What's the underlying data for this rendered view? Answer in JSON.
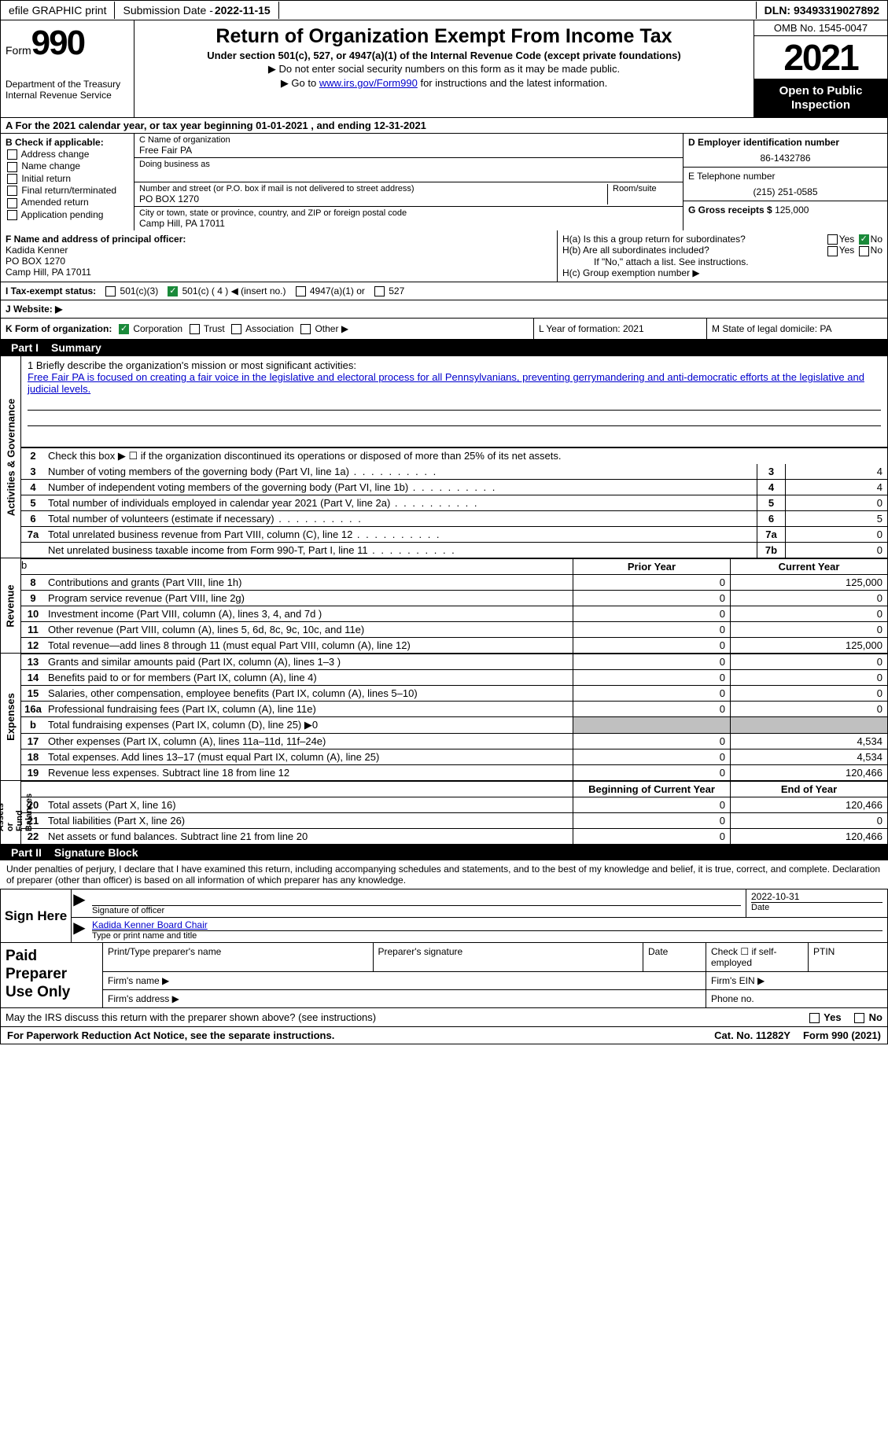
{
  "top": {
    "efile_btn": "efile GRAPHIC print",
    "submission_label": "Submission Date - ",
    "submission_date": "2022-11-15",
    "dln_label": "DLN: ",
    "dln": "93493319027892"
  },
  "header": {
    "form_word": "Form",
    "form_num": "990",
    "dept": "Department of the Treasury\nInternal Revenue Service",
    "title": "Return of Organization Exempt From Income Tax",
    "sub": "Under section 501(c), 527, or 4947(a)(1) of the Internal Revenue Code (except private foundations)",
    "note1": "▶ Do not enter social security numbers on this form as it may be made public.",
    "note2_pre": "▶ Go to ",
    "note2_link": "www.irs.gov/Form990",
    "note2_post": " for instructions and the latest information.",
    "omb": "OMB No. 1545-0047",
    "year": "2021",
    "open": "Open to Public Inspection"
  },
  "period": {
    "text": "A For the 2021 calendar year, or tax year beginning 01-01-2021     , and ending 12-31-2021"
  },
  "section_b": {
    "label": "B Check if applicable:",
    "opts": [
      "Address change",
      "Name change",
      "Initial return",
      "Final return/terminated",
      "Amended return",
      "Application pending"
    ]
  },
  "section_c": {
    "name_label": "C Name of organization",
    "name": "Free Fair PA",
    "dba_label": "Doing business as",
    "addr_label": "Number and street (or P.O. box if mail is not delivered to street address)",
    "room_label": "Room/suite",
    "addr": "PO BOX 1270",
    "city_label": "City or town, state or province, country, and ZIP or foreign postal code",
    "city": "Camp Hill, PA   17011"
  },
  "section_d": {
    "ein_label": "D Employer identification number",
    "ein": "86-1432786",
    "tel_label": "E Telephone number",
    "tel": "(215) 251-0585",
    "gross_label": "G Gross receipts $ ",
    "gross": "125,000"
  },
  "section_f": {
    "label": "F Name and address of principal officer:",
    "name": "Kadida Kenner",
    "addr1": "PO BOX 1270",
    "addr2": "Camp Hill, PA   17011"
  },
  "section_h": {
    "ha": "H(a)  Is this a group return for subordinates?",
    "hb": "H(b)  Are all subordinates included?",
    "hb_note": "If \"No,\" attach a list. See instructions.",
    "hc": "H(c)  Group exemption number ▶",
    "yes": "Yes",
    "no": "No"
  },
  "section_i": {
    "label": "I  Tax-exempt status:",
    "o1": "501(c)(3)",
    "o2": "501(c) ( 4 ) ◀ (insert no.)",
    "o3": "4947(a)(1) or",
    "o4": "527"
  },
  "section_j": {
    "label": "J  Website: ▶"
  },
  "section_k": {
    "label": "K Form of organization:",
    "o1": "Corporation",
    "o2": "Trust",
    "o3": "Association",
    "o4": "Other ▶"
  },
  "section_l": {
    "text": "L Year of formation: 2021"
  },
  "section_m": {
    "text": "M State of legal domicile: PA"
  },
  "part1": {
    "header_num": "Part I",
    "header_title": "Summary",
    "mission_label": "1  Briefly describe the organization's mission or most significant activities:",
    "mission": "Free Fair PA is focused on creating a fair voice in the legislative and electoral process for all Pennsylvanians, preventing gerrymandering and anti-democratic efforts at the legislative and judicial levels.",
    "line2": "Check this box ▶ ☐  if the organization discontinued its operations or disposed of more than 25% of its net assets.",
    "lines_a": [
      {
        "n": "3",
        "d": "Number of voting members of the governing body (Part VI, line 1a)",
        "b": "3",
        "v": "4"
      },
      {
        "n": "4",
        "d": "Number of independent voting members of the governing body (Part VI, line 1b)",
        "b": "4",
        "v": "4"
      },
      {
        "n": "5",
        "d": "Total number of individuals employed in calendar year 2021 (Part V, line 2a)",
        "b": "5",
        "v": "0"
      },
      {
        "n": "6",
        "d": "Total number of volunteers (estimate if necessary)",
        "b": "6",
        "v": "5"
      },
      {
        "n": "7a",
        "d": "Total unrelated business revenue from Part VIII, column (C), line 12",
        "b": "7a",
        "v": "0"
      },
      {
        "n": "",
        "d": "Net unrelated business taxable income from Form 990-T, Part I, line 11",
        "b": "7b",
        "v": "0"
      }
    ],
    "col_prior": "Prior Year",
    "col_current": "Current Year",
    "revenue": [
      {
        "n": "8",
        "d": "Contributions and grants (Part VIII, line 1h)",
        "p": "0",
        "c": "125,000"
      },
      {
        "n": "9",
        "d": "Program service revenue (Part VIII, line 2g)",
        "p": "0",
        "c": "0"
      },
      {
        "n": "10",
        "d": "Investment income (Part VIII, column (A), lines 3, 4, and 7d )",
        "p": "0",
        "c": "0"
      },
      {
        "n": "11",
        "d": "Other revenue (Part VIII, column (A), lines 5, 6d, 8c, 9c, 10c, and 11e)",
        "p": "0",
        "c": "0"
      },
      {
        "n": "12",
        "d": "Total revenue—add lines 8 through 11 (must equal Part VIII, column (A), line 12)",
        "p": "0",
        "c": "125,000"
      }
    ],
    "expenses": [
      {
        "n": "13",
        "d": "Grants and similar amounts paid (Part IX, column (A), lines 1–3 )",
        "p": "0",
        "c": "0"
      },
      {
        "n": "14",
        "d": "Benefits paid to or for members (Part IX, column (A), line 4)",
        "p": "0",
        "c": "0"
      },
      {
        "n": "15",
        "d": "Salaries, other compensation, employee benefits (Part IX, column (A), lines 5–10)",
        "p": "0",
        "c": "0"
      },
      {
        "n": "16a",
        "d": "Professional fundraising fees (Part IX, column (A), line 11e)",
        "p": "0",
        "c": "0"
      },
      {
        "n": "b",
        "d": "Total fundraising expenses (Part IX, column (D), line 25) ▶0",
        "p": "shade",
        "c": "shade"
      },
      {
        "n": "17",
        "d": "Other expenses (Part IX, column (A), lines 11a–11d, 11f–24e)",
        "p": "0",
        "c": "4,534"
      },
      {
        "n": "18",
        "d": "Total expenses. Add lines 13–17 (must equal Part IX, column (A), line 25)",
        "p": "0",
        "c": "4,534"
      },
      {
        "n": "19",
        "d": "Revenue less expenses. Subtract line 18 from line 12",
        "p": "0",
        "c": "120,466"
      }
    ],
    "col_beg": "Beginning of Current Year",
    "col_end": "End of Year",
    "netassets": [
      {
        "n": "20",
        "d": "Total assets (Part X, line 16)",
        "p": "0",
        "c": "120,466"
      },
      {
        "n": "21",
        "d": "Total liabilities (Part X, line 26)",
        "p": "0",
        "c": "0"
      },
      {
        "n": "22",
        "d": "Net assets or fund balances. Subtract line 21 from line 20",
        "p": "0",
        "c": "120,466"
      }
    ],
    "side_act": "Activities & Governance",
    "side_rev": "Revenue",
    "side_exp": "Expenses",
    "side_net": "Net Assets or\nFund Balances"
  },
  "part2": {
    "header_num": "Part II",
    "header_title": "Signature Block",
    "declaration": "Under penalties of perjury, I declare that I have examined this return, including accompanying schedules and statements, and to the best of my knowledge and belief, it is true, correct, and complete. Declaration of preparer (other than officer) is based on all information of which preparer has any knowledge.",
    "sign_here": "Sign Here",
    "sig_officer": "Signature of officer",
    "sig_date": "2022-10-31",
    "date_label": "Date",
    "officer_name": "Kadida Kenner  Board Chair",
    "type_label": "Type or print name and title",
    "paid_prep": "Paid Preparer Use Only",
    "prep_name": "Print/Type preparer's name",
    "prep_sig": "Preparer's signature",
    "prep_date": "Date",
    "prep_check": "Check ☐ if self-employed",
    "ptin": "PTIN",
    "firm_name": "Firm's name    ▶",
    "firm_ein": "Firm's EIN ▶",
    "firm_addr": "Firm's address ▶",
    "phone": "Phone no.",
    "discuss": "May the IRS discuss this return with the preparer shown above? (see instructions)",
    "discuss_yes": "Yes",
    "discuss_no": "No"
  },
  "footer": {
    "l": "For Paperwork Reduction Act Notice, see the separate instructions.",
    "m": "Cat. No. 11282Y",
    "r": "Form 990 (2021)"
  }
}
